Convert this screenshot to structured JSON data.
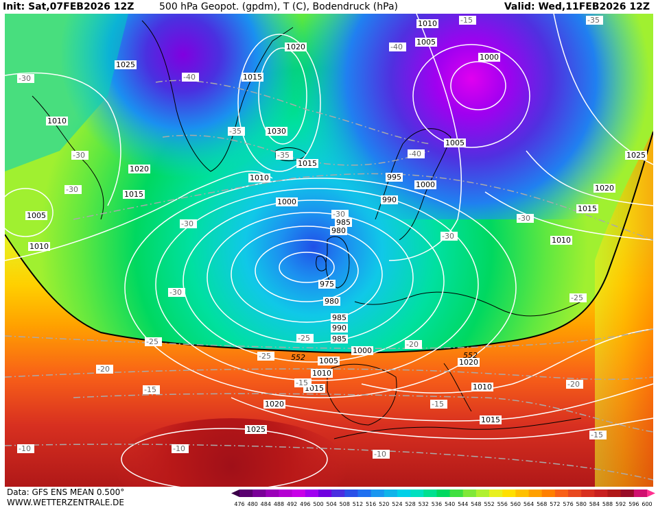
{
  "header": {
    "init": "Init: Sat,07FEB2026 12Z",
    "title": "500 hPa Geopot. (gpdm), T (C), Bodendruck (hPa)",
    "valid": "Valid: Wed,11FEB2026 12Z"
  },
  "footer": {
    "data_source": "Data: GFS ENS MEAN 0.500°",
    "website": "WWW.WETTERZENTRALE.DE"
  },
  "colorbar": {
    "ticks": [
      "476",
      "480",
      "484",
      "488",
      "492",
      "496",
      "500",
      "504",
      "508",
      "512",
      "516",
      "520",
      "524",
      "528",
      "532",
      "536",
      "540",
      "544",
      "548",
      "552",
      "556",
      "560",
      "564",
      "568",
      "572",
      "576",
      "580",
      "584",
      "588",
      "592",
      "596",
      "600"
    ],
    "colors": [
      "#3a0048",
      "#5a0070",
      "#7a0098",
      "#9a00b8",
      "#b400d2",
      "#c800e8",
      "#a000f0",
      "#7000e0",
      "#4a2ee0",
      "#2a50e8",
      "#2070f0",
      "#1a96f0",
      "#10b4ea",
      "#00d0e8",
      "#00e0c0",
      "#00e090",
      "#00d860",
      "#40e040",
      "#80e838",
      "#b0f030",
      "#e8f020",
      "#ffe000",
      "#ffc000",
      "#ffa000",
      "#ff8000",
      "#f86018",
      "#e84820",
      "#d83020",
      "#c82020",
      "#b01818",
      "#980c28",
      "#d01070",
      "#ff3090"
    ]
  },
  "map": {
    "colors": {
      "contour": "#ffffff",
      "temp_line": "#aaaaaa",
      "coast": "#000000",
      "isoline_552": "#000000"
    },
    "pressure_labels": [
      "1010",
      "1005",
      "1000",
      "1025",
      "1020",
      "1015",
      "1030",
      "1010",
      "1005",
      "1000",
      "1020",
      "1015",
      "1010",
      "1010",
      "1015",
      "1025",
      "1020",
      "1015",
      "995",
      "990",
      "1000",
      "985",
      "980",
      "975",
      "980",
      "985",
      "990",
      "985",
      "1000",
      "1005",
      "1010",
      "1015",
      "1020",
      "1025",
      "1005",
      "1010",
      "1015",
      "1020",
      "1025",
      "1020",
      "1015",
      "1010",
      "1005",
      "1010",
      "1005",
      "1015",
      "1025",
      "1000",
      "1010"
    ],
    "temp_labels": [
      "-30",
      "-40",
      "-35",
      "-35",
      "-40",
      "-40",
      "-15",
      "-35",
      "-30",
      "-30",
      "-30",
      "-30",
      "-30",
      "-30",
      "-25",
      "-25",
      "-25",
      "-25",
      "-20",
      "-20",
      "-20",
      "-15",
      "-15",
      "-15",
      "-20",
      "-15",
      "-10",
      "-10",
      "-10",
      "-25",
      "-30",
      "-40",
      "-30"
    ],
    "geopot_labels": [
      "552",
      "552"
    ],
    "gradient_bands": [
      "#3a0048",
      "#5a0070",
      "#7a0098",
      "#9a00b8",
      "#b400d2",
      "#c800e8",
      "#a000f0",
      "#7000e0",
      "#4a2ee0",
      "#2a50e8",
      "#2070f0",
      "#1a96f0",
      "#10b4ea",
      "#00d0e8",
      "#00e0c0",
      "#00e090",
      "#00d860",
      "#40e040",
      "#80e838",
      "#b0f030",
      "#e8f020",
      "#ffe000",
      "#ffc000",
      "#ffa000",
      "#ff8000",
      "#f86018",
      "#e84820",
      "#d83020",
      "#c82020",
      "#b01818"
    ]
  }
}
